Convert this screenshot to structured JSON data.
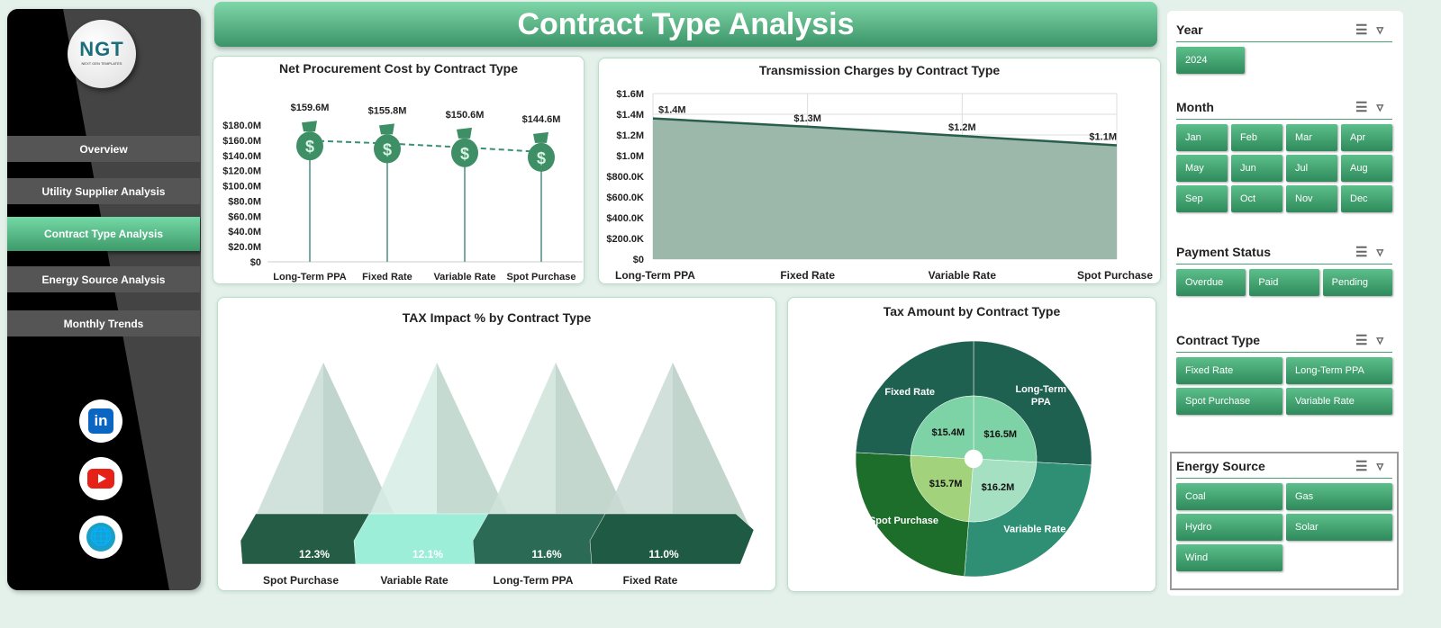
{
  "sidebar": {
    "logo_text": "NGT",
    "logo_sub": "NEXT GEN TEMPLATES",
    "items": [
      {
        "label": "Overview"
      },
      {
        "label": "Utility Supplier Analysis"
      },
      {
        "label": "Contract Type Analysis",
        "active": true
      },
      {
        "label": "Energy Source Analysis"
      },
      {
        "label": "Monthly Trends"
      }
    ],
    "social": [
      "linkedin-icon",
      "youtube-icon",
      "globe-icon"
    ]
  },
  "header": {
    "title": "Contract Type Analysis"
  },
  "colors": {
    "accent": "#3e9a6a",
    "dark_green": "#1e6150",
    "light_green": "#7ed3a6"
  },
  "chart_data": [
    {
      "type": "scatter",
      "title": "Net Procurement Cost by Contract Type",
      "categories": [
        "Long-Term PPA",
        "Fixed Rate",
        "Variable Rate",
        "Spot Purchase"
      ],
      "values": [
        159.6,
        155.8,
        150.6,
        144.6
      ],
      "labels": [
        "$159.6M",
        "$155.8M",
        "$150.6M",
        "$144.6M"
      ],
      "yticks": [
        "$0",
        "$20.0M",
        "$40.0M",
        "$60.0M",
        "$80.0M",
        "$100.0M",
        "$120.0M",
        "$140.0M",
        "$160.0M",
        "$180.0M"
      ],
      "ylim": [
        0,
        180
      ],
      "marker": "money-bag-icon",
      "trendline": "dashed"
    },
    {
      "type": "area",
      "title": "Transmission Charges by Contract Type",
      "categories": [
        "Long-Term PPA",
        "Fixed Rate",
        "Variable Rate",
        "Spot Purchase"
      ],
      "values": [
        1.36,
        1.28,
        1.19,
        1.1
      ],
      "labels": [
        "$1.4M",
        "$1.3M",
        "$1.2M",
        "$1.1M"
      ],
      "yticks": [
        "$0",
        "$200.0K",
        "$400.0K",
        "$600.0K",
        "$800.0K",
        "$1.0M",
        "$1.2M",
        "$1.4M",
        "$1.6M"
      ],
      "ylim": [
        0,
        1.6
      ],
      "grid": true
    },
    {
      "type": "bar",
      "title": "TAX Impact % by Contract Type",
      "categories": [
        "Spot Purchase",
        "Variable Rate",
        "Long-Term PPA",
        "Fixed Rate"
      ],
      "values": [
        12.3,
        12.1,
        11.6,
        11.0
      ],
      "labels": [
        "12.3%",
        "12.1%",
        "11.6%",
        "11.0%"
      ],
      "shape": "pyramid"
    },
    {
      "type": "pie",
      "title": "Tax Amount by Contract Type",
      "style": "sunburst",
      "categories": [
        "Long-Term PPA",
        "Variable Rate",
        "Spot Purchase",
        "Fixed Rate"
      ],
      "category_labels": [
        [
          "Long-Term",
          "PPA"
        ],
        [
          "Variable Rate"
        ],
        [
          "Spot Purchase"
        ],
        [
          "Fixed Rate"
        ]
      ],
      "values": [
        16.5,
        16.2,
        15.7,
        15.4
      ],
      "labels": [
        "$16.5M",
        "$16.2M",
        "$15.7M",
        "$15.4M"
      ],
      "outer_colors": [
        "#1e6150",
        "#2e8f74",
        "#1c6e2a",
        "#1e6150"
      ],
      "inner_colors": [
        "#7ed3a6",
        "#a6e0c2",
        "#a2d27c",
        "#7ed3a6"
      ]
    }
  ],
  "slicers": [
    {
      "title": "Year",
      "cols": 1,
      "items": [
        "2024"
      ]
    },
    {
      "title": "Month",
      "cols": 4,
      "items": [
        "Jan",
        "Feb",
        "Mar",
        "Apr",
        "May",
        "Jun",
        "Jul",
        "Aug",
        "Sep",
        "Oct",
        "Nov",
        "Dec"
      ]
    },
    {
      "title": "Payment Status",
      "cols": 3,
      "items": [
        "Overdue",
        "Paid",
        "Pending"
      ]
    },
    {
      "title": "Contract Type",
      "cols": 2,
      "items": [
        "Fixed Rate",
        "Long-Term PPA",
        "Spot Purchase",
        "Variable Rate"
      ]
    },
    {
      "title": "Energy Source",
      "cols": 2,
      "items": [
        "Coal",
        "Gas",
        "Hydro",
        "Solar",
        "Wind"
      ]
    }
  ]
}
